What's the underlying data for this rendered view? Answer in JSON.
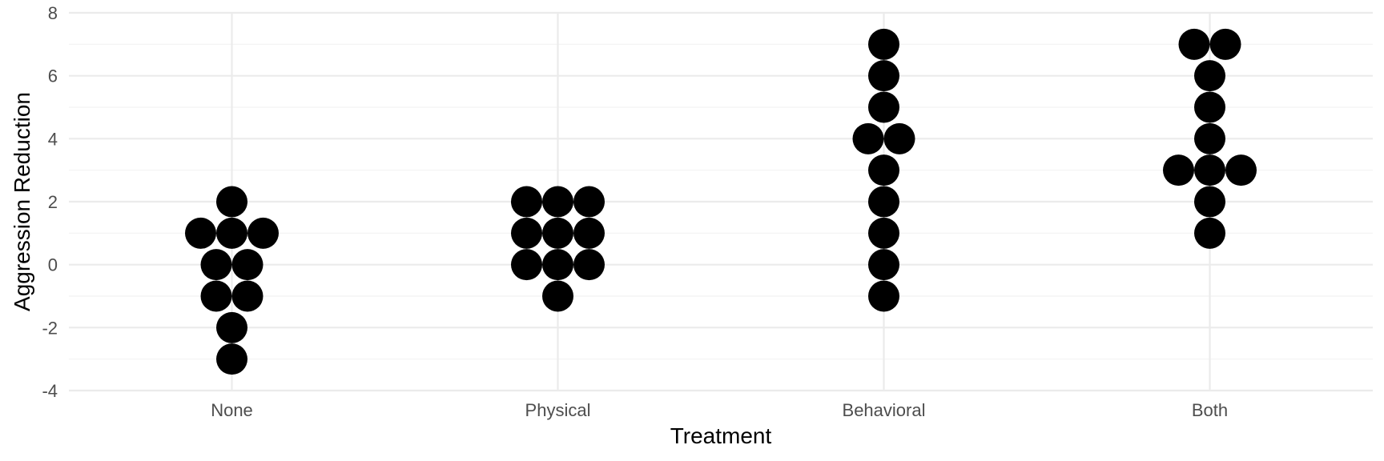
{
  "chart_data": {
    "type": "dotplot",
    "xlabel": "Treatment",
    "ylabel": "Aggression Reduction",
    "categories": [
      "None",
      "Physical",
      "Behavioral",
      "Both"
    ],
    "ylim": [
      -4,
      8
    ],
    "y_ticks": [
      -4,
      -2,
      0,
      2,
      4,
      6,
      8
    ],
    "y_tick_labels": [
      "-4",
      "-2",
      "0",
      "2",
      "4",
      "6",
      "8"
    ],
    "grid": true,
    "point_color": "#000000",
    "stacks": [
      {
        "category": "None",
        "points": [
          {
            "y": 2,
            "count": 1
          },
          {
            "y": 1,
            "count": 3
          },
          {
            "y": 0,
            "count": 2
          },
          {
            "y": -1,
            "count": 2
          },
          {
            "y": -2,
            "count": 1
          },
          {
            "y": -3,
            "count": 1
          }
        ]
      },
      {
        "category": "Physical",
        "points": [
          {
            "y": 2,
            "count": 3
          },
          {
            "y": 1,
            "count": 3
          },
          {
            "y": 0,
            "count": 3
          },
          {
            "y": -1,
            "count": 1
          }
        ]
      },
      {
        "category": "Behavioral",
        "points": [
          {
            "y": 7,
            "count": 1
          },
          {
            "y": 6,
            "count": 1
          },
          {
            "y": 5,
            "count": 1
          },
          {
            "y": 4,
            "count": 2
          },
          {
            "y": 3,
            "count": 1
          },
          {
            "y": 2,
            "count": 1
          },
          {
            "y": 1,
            "count": 1
          },
          {
            "y": 0,
            "count": 1
          },
          {
            "y": -1,
            "count": 1
          }
        ]
      },
      {
        "category": "Both",
        "points": [
          {
            "y": 7,
            "count": 2
          },
          {
            "y": 6,
            "count": 1
          },
          {
            "y": 5,
            "count": 1
          },
          {
            "y": 4,
            "count": 1
          },
          {
            "y": 3,
            "count": 3
          },
          {
            "y": 2,
            "count": 1
          },
          {
            "y": 1,
            "count": 1
          }
        ]
      }
    ]
  }
}
